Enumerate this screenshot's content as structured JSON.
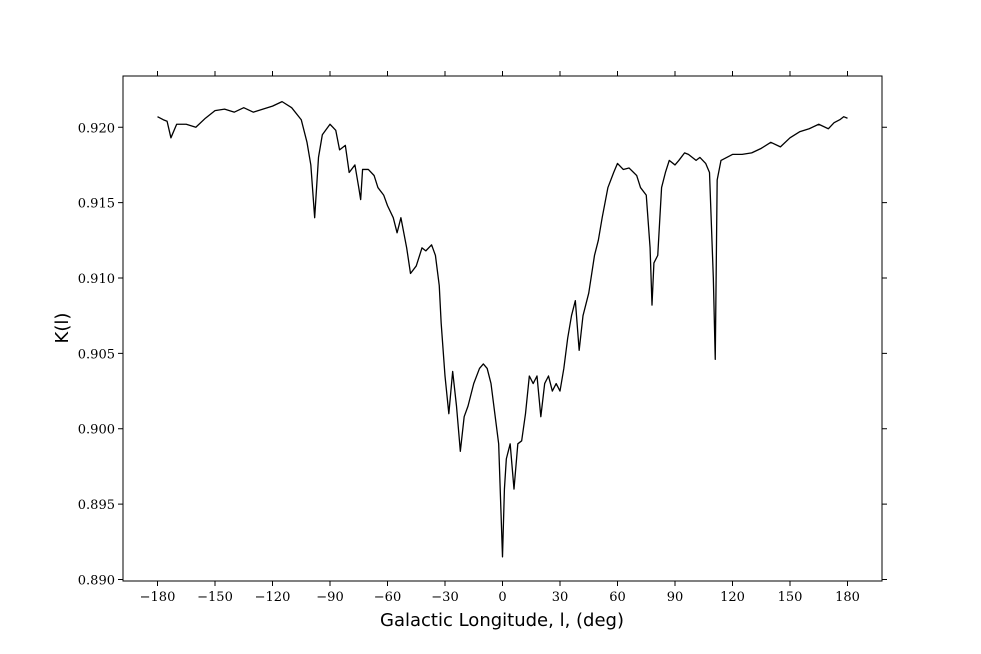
{
  "chart_data": {
    "type": "line",
    "xlabel": "Galactic Longitude, l, (deg)",
    "ylabel": "K(l)",
    "color": "#000000",
    "x": [
      -180,
      -177,
      -175,
      -173,
      -170,
      -165,
      -160,
      -155,
      -150,
      -145,
      -140,
      -135,
      -130,
      -125,
      -120,
      -115,
      -110,
      -105,
      -102,
      -100,
      -98,
      -96,
      -94,
      -90,
      -87,
      -85,
      -82,
      -80,
      -77,
      -75,
      -74,
      -73,
      -70,
      -67,
      -65,
      -62,
      -60,
      -57,
      -55,
      -53,
      -50,
      -48,
      -45,
      -42,
      -40,
      -37,
      -35,
      -33,
      -32,
      -30,
      -28,
      -26,
      -24,
      -22,
      -20,
      -18,
      -15,
      -12,
      -10,
      -8,
      -6,
      -4,
      -2,
      0,
      1,
      2,
      4,
      6,
      8,
      10,
      12,
      14,
      16,
      18,
      20,
      22,
      24,
      26,
      28,
      30,
      32,
      34,
      36,
      38,
      40,
      42,
      45,
      48,
      50,
      52,
      55,
      58,
      60,
      63,
      66,
      70,
      72,
      75,
      77,
      78,
      79,
      81,
      83,
      85,
      87,
      90,
      92,
      95,
      97,
      99,
      101,
      103,
      106,
      108,
      110,
      111,
      112,
      114,
      117,
      120,
      125,
      130,
      135,
      140,
      145,
      150,
      155,
      160,
      165,
      170,
      173,
      176,
      178,
      180
    ],
    "values": [
      0.9207,
      0.9205,
      0.9204,
      0.9193,
      0.9202,
      0.9202,
      0.92,
      0.9206,
      0.9211,
      0.9212,
      0.921,
      0.9213,
      0.921,
      0.9212,
      0.9214,
      0.9217,
      0.9213,
      0.9205,
      0.919,
      0.9175,
      0.914,
      0.918,
      0.9195,
      0.9202,
      0.9198,
      0.9185,
      0.9188,
      0.917,
      0.9175,
      0.916,
      0.9152,
      0.9172,
      0.9172,
      0.9168,
      0.916,
      0.9155,
      0.9148,
      0.914,
      0.913,
      0.914,
      0.912,
      0.9103,
      0.9108,
      0.912,
      0.9118,
      0.9122,
      0.9115,
      0.9095,
      0.907,
      0.9035,
      0.901,
      0.9038,
      0.9015,
      0.8985,
      0.9008,
      0.9015,
      0.903,
      0.904,
      0.9043,
      0.904,
      0.903,
      0.901,
      0.899,
      0.8915,
      0.896,
      0.898,
      0.899,
      0.896,
      0.899,
      0.8992,
      0.901,
      0.9035,
      0.903,
      0.9035,
      0.9008,
      0.903,
      0.9035,
      0.9025,
      0.903,
      0.9025,
      0.904,
      0.906,
      0.9075,
      0.9085,
      0.9052,
      0.9075,
      0.909,
      0.9115,
      0.9125,
      0.914,
      0.916,
      0.917,
      0.9176,
      0.9172,
      0.9173,
      0.9168,
      0.916,
      0.9155,
      0.912,
      0.9082,
      0.911,
      0.9115,
      0.916,
      0.917,
      0.9178,
      0.9175,
      0.9178,
      0.9183,
      0.9182,
      0.918,
      0.9178,
      0.918,
      0.9176,
      0.917,
      0.91,
      0.9046,
      0.9165,
      0.9178,
      0.918,
      0.9182,
      0.9182,
      0.9183,
      0.9186,
      0.919,
      0.9187,
      0.9193,
      0.9197,
      0.9199,
      0.9202,
      0.9199,
      0.9203,
      0.9205,
      0.9207,
      0.9206
    ],
    "xlim": [
      -198,
      198
    ],
    "ylim": [
      0.8899,
      0.9234
    ],
    "xticks": [
      {
        "value": -180,
        "label": "−180"
      },
      {
        "value": -150,
        "label": "−150"
      },
      {
        "value": -120,
        "label": "−120"
      },
      {
        "value": -90,
        "label": "−90"
      },
      {
        "value": -60,
        "label": "−60"
      },
      {
        "value": -30,
        "label": "−30"
      },
      0,
      30,
      60,
      90,
      120,
      150,
      180
    ],
    "yticks": [
      {
        "value": 0.89,
        "label": "0.890"
      },
      {
        "value": 0.895,
        "label": "0.895"
      },
      {
        "value": 0.9,
        "label": "0.900"
      },
      {
        "value": 0.905,
        "label": "0.905"
      },
      {
        "value": 0.91,
        "label": "0.910"
      },
      {
        "value": 0.915,
        "label": "0.915"
      },
      {
        "value": 0.92,
        "label": "0.920"
      }
    ],
    "grid": false
  }
}
